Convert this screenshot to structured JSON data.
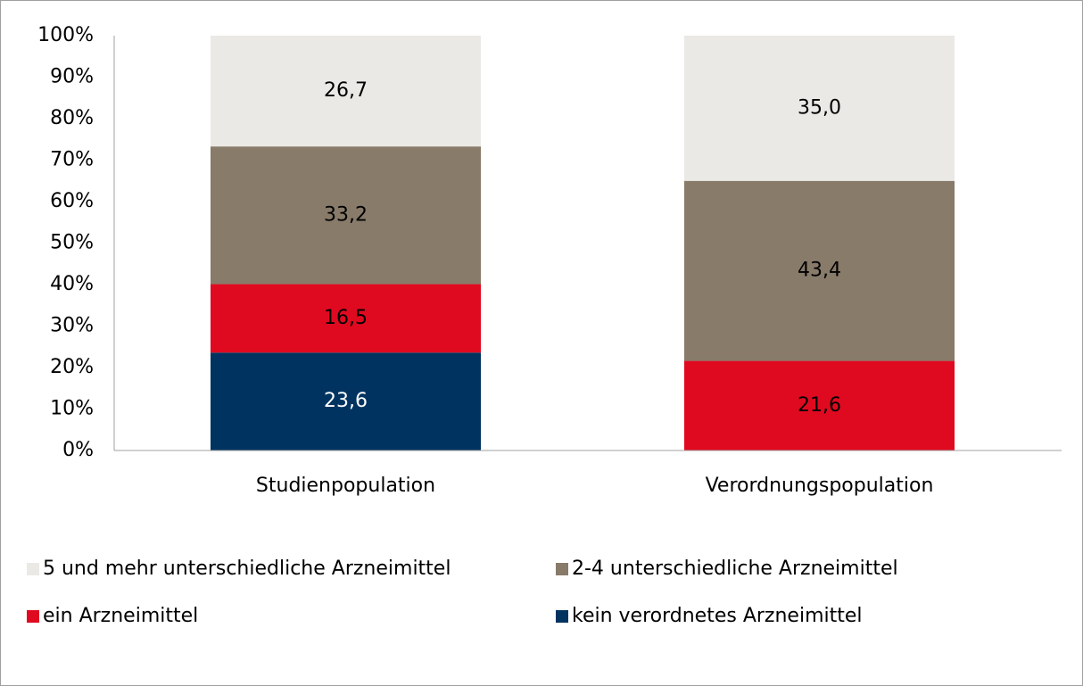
{
  "chart_data": {
    "type": "stacked_bar",
    "categories": [
      "Studienpopulation",
      "Verordnungspopulation"
    ],
    "series": [
      {
        "name": "5 und mehr unterschiedliche Arzneimittel",
        "color": "#ebe9e5",
        "values": [
          26.7,
          35.0
        ],
        "value_labels": [
          "26,7",
          "35,0"
        ]
      },
      {
        "name": "2-4 unterschiedliche Arzneimittel",
        "color": "#887b6a",
        "values": [
          33.2,
          43.4
        ],
        "value_labels": [
          "33,2",
          "43,4"
        ]
      },
      {
        "name": "ein Arzneimittel",
        "color": "#e00a20",
        "values": [
          16.5,
          21.6
        ],
        "value_labels": [
          "16,5",
          "21,6"
        ]
      },
      {
        "name": "kein verordnetes Arzneimittel",
        "color": "#003360",
        "values": [
          23.6,
          null
        ],
        "value_labels": [
          "23,6",
          null
        ]
      }
    ],
    "ylim": [
      0,
      100
    ],
    "yticks": [
      {
        "value": 0,
        "label": "0%"
      },
      {
        "value": 10,
        "label": "10%"
      },
      {
        "value": 20,
        "label": "20%"
      },
      {
        "value": 30,
        "label": "30%"
      },
      {
        "value": 40,
        "label": "40%"
      },
      {
        "value": 50,
        "label": "50%"
      },
      {
        "value": 60,
        "label": "60%"
      },
      {
        "value": 70,
        "label": "70%"
      },
      {
        "value": 80,
        "label": "80%"
      },
      {
        "value": 90,
        "label": "90%"
      },
      {
        "value": 100,
        "label": "100%"
      }
    ],
    "legend": "bottom"
  }
}
